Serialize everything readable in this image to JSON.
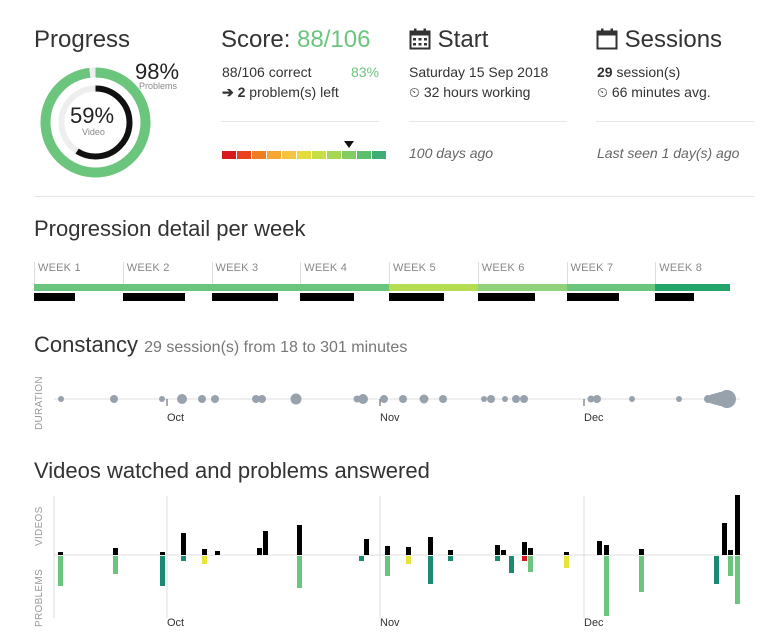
{
  "progress": {
    "title": "Progress",
    "problems_pct": "98%",
    "problems_label": "Problems",
    "video_pct": "59%",
    "video_label": "Video",
    "problems_fraction": 0.98,
    "video_fraction": 0.59
  },
  "score": {
    "title_prefix": "Score: ",
    "title_value": "88/106",
    "correct_text": "88/106 correct",
    "correct_pct": "83%",
    "problems_left_count": "2",
    "problems_left_text": " problem(s) left",
    "scale_colors": [
      "#d7191c",
      "#e8411c",
      "#f07d22",
      "#f7a533",
      "#f4c33f",
      "#e6db3c",
      "#c7de45",
      "#a5d752",
      "#82cc61",
      "#5dbe6e",
      "#3fae74"
    ],
    "marker_index": 8
  },
  "start": {
    "title": "Start",
    "date": "Saturday 15 Sep 2018",
    "hours": "32 hours working",
    "ago": "100 days ago"
  },
  "sessions": {
    "title": "Sessions",
    "count": "29",
    "count_suffix": " session(s)",
    "avg": "66 minutes avg.",
    "last_seen": "Last seen 1 day(s) ago"
  },
  "weekly": {
    "title": "Progression detail per week",
    "weeks": [
      {
        "label": "WEEK 1",
        "color": "#6cc57c",
        "black_fraction": 0.46
      },
      {
        "label": "WEEK 2",
        "color": "#6cc57c",
        "black_fraction": 0.7
      },
      {
        "label": "WEEK 3",
        "color": "#6cc57c",
        "black_fraction": 0.75
      },
      {
        "label": "WEEK 4",
        "color": "#6cc57c",
        "black_fraction": 0.61
      },
      {
        "label": "WEEK 5",
        "color": "#b5dd52",
        "black_fraction": 0.62
      },
      {
        "label": "WEEK 6",
        "color": "#8fd27a",
        "black_fraction": 0.65
      },
      {
        "label": "WEEK 7",
        "color": "#6cc57c",
        "black_fraction": 0.59
      },
      {
        "label": "WEEK 8",
        "color": "#22a46b",
        "black_fraction": 0.44
      }
    ]
  },
  "constancy": {
    "title": "Constancy",
    "subtitle": "29 session(s) from 18 to 301 minutes",
    "axis_label": "DURATION",
    "months": [
      "Oct",
      "Nov",
      "Dec"
    ]
  },
  "videos": {
    "title": "Videos watched and problems answered",
    "axis_videos": "VIDEOS",
    "axis_problems": "PROBLEMS",
    "months": [
      "Oct",
      "Nov",
      "Dec"
    ]
  },
  "colors": {
    "accent_green": "#6cc57c",
    "dot_gray": "#98a2ad",
    "dark_teal": "#1a8a72",
    "yellow": "#e5e43a",
    "red": "#d7191c"
  }
}
